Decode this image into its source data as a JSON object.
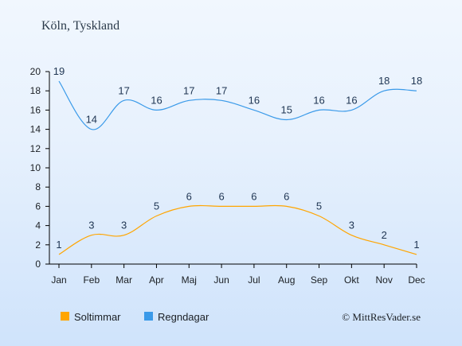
{
  "chart_data": {
    "type": "line",
    "title": "Köln, Tyskland",
    "categories": [
      "Jan",
      "Feb",
      "Mar",
      "Apr",
      "Maj",
      "Jun",
      "Jul",
      "Aug",
      "Sep",
      "Okt",
      "Nov",
      "Dec"
    ],
    "series": [
      {
        "name": "Soltimmar",
        "values": [
          1,
          3,
          3,
          5,
          6,
          6,
          6,
          6,
          5,
          3,
          2,
          1
        ],
        "color": "#ffa500"
      },
      {
        "name": "Regndagar",
        "values": [
          19,
          14,
          17,
          16,
          17,
          17,
          16,
          15,
          16,
          16,
          18,
          18
        ],
        "color": "#3a9ae9"
      }
    ],
    "yticks": [
      0,
      2,
      4,
      6,
      8,
      10,
      12,
      14,
      16,
      18,
      20
    ],
    "ylim": [
      0,
      20
    ],
    "grid": false,
    "legend_position": "bottom-left",
    "credit": "© MittResVader.se"
  }
}
